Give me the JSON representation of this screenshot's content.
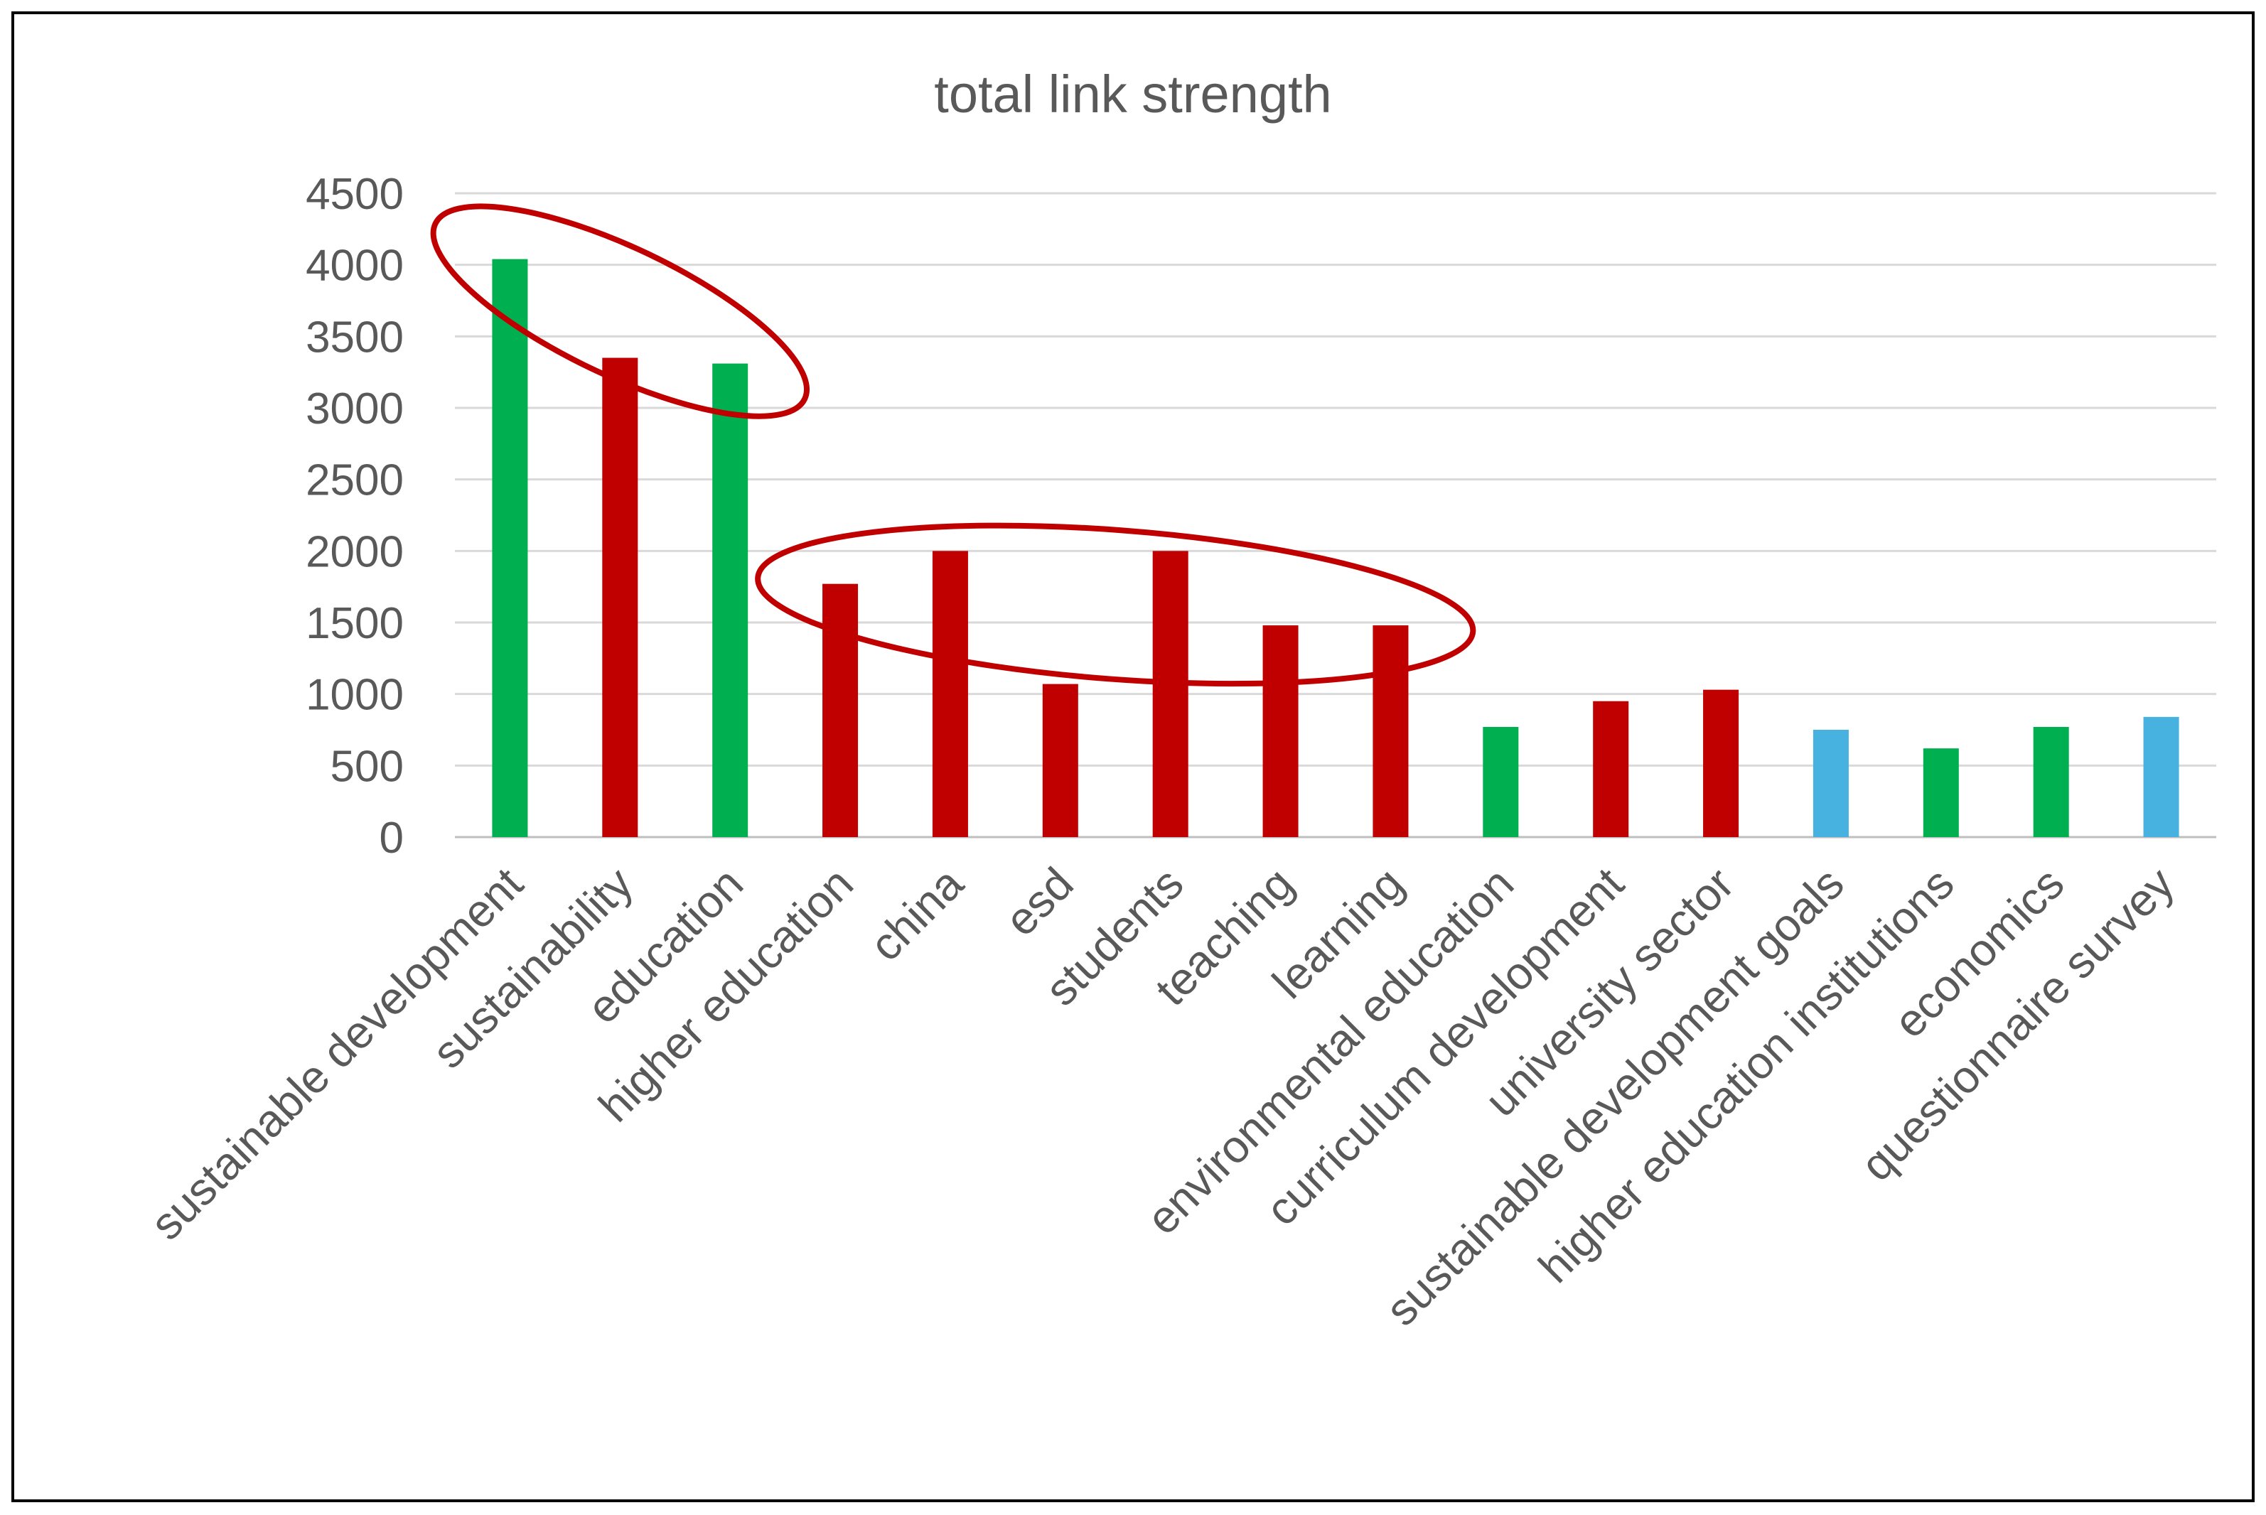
{
  "chart_data": {
    "type": "bar",
    "title": "total link strength",
    "xlabel": "",
    "ylabel": "",
    "ylim": [
      0,
      4500
    ],
    "yticks": [
      0,
      500,
      1000,
      1500,
      2000,
      2500,
      3000,
      3500,
      4000,
      4500
    ],
    "grid": true,
    "legend": "none",
    "categories": [
      "sustainable development",
      "sustainability",
      "education",
      "higher education",
      "china",
      "esd",
      "students",
      "teaching",
      "learning",
      "environmental education",
      "curriculum development",
      "university sector",
      "sustainable development goals",
      "higher education institutions",
      "economics",
      "questionnaire survey"
    ],
    "values": [
      4040,
      3350,
      3310,
      1770,
      2000,
      1070,
      2000,
      1480,
      1480,
      770,
      950,
      1030,
      750,
      620,
      770,
      840
    ],
    "bar_colors": [
      "#00b050",
      "#c00000",
      "#00b050",
      "#c00000",
      "#c00000",
      "#c00000",
      "#c00000",
      "#c00000",
      "#c00000",
      "#00b050",
      "#c00000",
      "#c00000",
      "#47b1e0",
      "#00b050",
      "#00b050",
      "#47b1e0"
    ],
    "annotations": [
      {
        "type": "ellipse",
        "color": "#c00000",
        "encloses": [
          "sustainable development",
          "sustainability",
          "education"
        ]
      },
      {
        "type": "ellipse",
        "color": "#c00000",
        "encloses": [
          "higher education",
          "china",
          "esd",
          "students",
          "teaching",
          "learning"
        ]
      }
    ]
  }
}
